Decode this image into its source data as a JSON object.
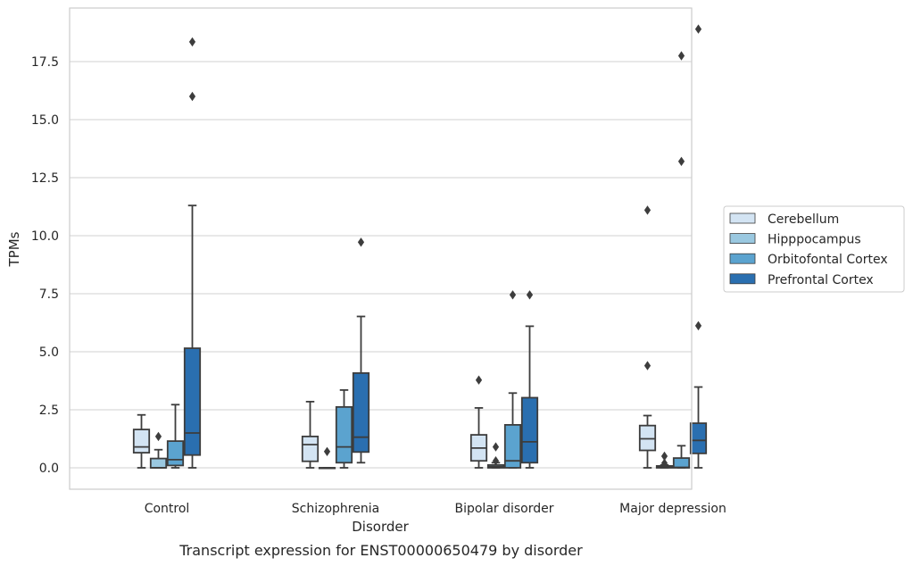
{
  "caption": "Transcript expression for ENST00000650479 by disorder",
  "chart_data": {
    "type": "boxplot",
    "title": "",
    "xlabel": "Disorder",
    "ylabel": "TPMs",
    "ylim": [
      -0.9,
      19.8
    ],
    "yticks": [
      0.0,
      2.5,
      5.0,
      7.5,
      10.0,
      12.5,
      15.0,
      17.5
    ],
    "ytick_labels": [
      "0.0",
      "2.5",
      "5.0",
      "7.5",
      "10.0",
      "12.5",
      "15.0",
      "17.5"
    ],
    "grid": "horizontal",
    "legend_position": "right",
    "categories": [
      "Control",
      "Schizophrenia",
      "Bipolar disorder",
      "Major depression"
    ],
    "series": [
      {
        "name": "Cerebellum",
        "color": "#d3e4f3",
        "boxes": [
          {
            "whisker_low": 0.0,
            "q1": 0.65,
            "median": 0.9,
            "q3": 1.65,
            "whisker_high": 2.28,
            "outliers": []
          },
          {
            "whisker_low": 0.0,
            "q1": 0.28,
            "median": 1.0,
            "q3": 1.35,
            "whisker_high": 2.85,
            "outliers": []
          },
          {
            "whisker_low": 0.0,
            "q1": 0.3,
            "median": 0.85,
            "q3": 1.42,
            "whisker_high": 2.58,
            "outliers": [
              3.78
            ]
          },
          {
            "whisker_low": 0.0,
            "q1": 0.75,
            "median": 1.25,
            "q3": 1.82,
            "whisker_high": 2.25,
            "outliers": [
              4.4,
              11.1
            ]
          }
        ]
      },
      {
        "name": "Hipppocampus",
        "color": "#9ac8e0",
        "boxes": [
          {
            "whisker_low": 0.0,
            "q1": 0.0,
            "median": 0.0,
            "q3": 0.4,
            "whisker_high": 0.78,
            "outliers": [
              1.35
            ]
          },
          {
            "whisker_low": 0.0,
            "q1": 0.0,
            "median": 0.0,
            "q3": 0.0,
            "whisker_high": 0.0,
            "outliers": [
              0.7
            ]
          },
          {
            "whisker_low": 0.0,
            "q1": 0.0,
            "median": 0.05,
            "q3": 0.12,
            "whisker_high": 0.22,
            "outliers": [
              0.3,
              0.9
            ]
          },
          {
            "whisker_low": 0.0,
            "q1": 0.0,
            "median": 0.03,
            "q3": 0.08,
            "whisker_high": 0.12,
            "outliers": [
              0.2,
              0.5
            ]
          }
        ]
      },
      {
        "name": "Orbitofontal Cortex",
        "color": "#5ba3cf",
        "boxes": [
          {
            "whisker_low": 0.0,
            "q1": 0.1,
            "median": 0.35,
            "q3": 1.15,
            "whisker_high": 2.72,
            "outliers": []
          },
          {
            "whisker_low": 0.0,
            "q1": 0.22,
            "median": 0.9,
            "q3": 2.62,
            "whisker_high": 3.35,
            "outliers": []
          },
          {
            "whisker_low": 0.0,
            "q1": 0.0,
            "median": 0.3,
            "q3": 1.85,
            "whisker_high": 3.22,
            "outliers": [
              7.45
            ]
          },
          {
            "whisker_low": 0.0,
            "q1": 0.0,
            "median": 0.02,
            "q3": 0.42,
            "whisker_high": 0.95,
            "outliers": [
              13.2,
              17.75
            ]
          }
        ]
      },
      {
        "name": "Prefrontal Cortex",
        "color": "#2a6fb0",
        "boxes": [
          {
            "whisker_low": 0.0,
            "q1": 0.55,
            "median": 1.5,
            "q3": 5.15,
            "whisker_high": 11.3,
            "outliers": [
              16.0,
              18.35
            ]
          },
          {
            "whisker_low": 0.22,
            "q1": 0.68,
            "median": 1.32,
            "q3": 4.08,
            "whisker_high": 6.52,
            "outliers": [
              9.72
            ]
          },
          {
            "whisker_low": 0.0,
            "q1": 0.22,
            "median": 1.12,
            "q3": 3.02,
            "whisker_high": 6.1,
            "outliers": [
              7.45
            ]
          },
          {
            "whisker_low": 0.0,
            "q1": 0.62,
            "median": 1.18,
            "q3": 1.92,
            "whisker_high": 3.48,
            "outliers": [
              6.12,
              18.9
            ]
          }
        ]
      }
    ]
  }
}
